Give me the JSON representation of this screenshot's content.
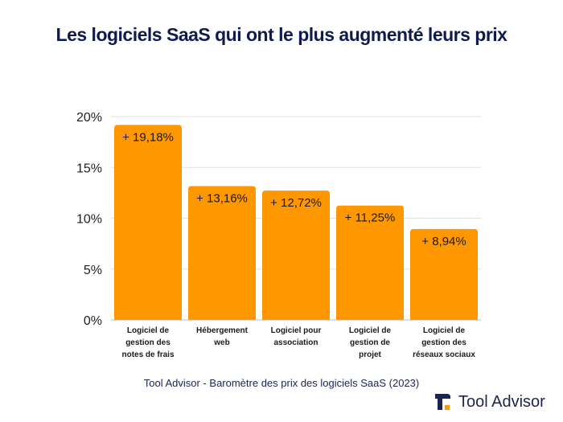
{
  "title": "Les logiciels SaaS qui ont le plus augmenté leurs prix",
  "source": "Tool Advisor - Baromètre des prix des logiciels SaaS (2023)",
  "brand": {
    "name": "Tool Advisor",
    "icon": "tool-advisor-logo-icon"
  },
  "colors": {
    "bar": "#ff9800",
    "title": "#0f1b4f",
    "grid": "#e0e0e0",
    "text": "#1c2450",
    "logo_accent": "#ff9800"
  },
  "chart_data": {
    "type": "bar",
    "categories": [
      [
        "Logiciel de",
        "gestion des",
        "notes de frais"
      ],
      [
        "Hébergement",
        "web"
      ],
      [
        "Logiciel pour",
        "association"
      ],
      [
        "Logiciel de",
        "gestion de",
        "projet"
      ],
      [
        "Logiciel de",
        "gestion des",
        "réseaux sociaux"
      ]
    ],
    "values": [
      19.18,
      13.16,
      12.72,
      11.25,
      8.94
    ],
    "data_labels": [
      "+ 19,18%",
      "+ 13,16%",
      "+ 12,72%",
      "+ 11,25%",
      "+ 8,94%"
    ],
    "ylim": [
      0,
      20
    ],
    "yticks": [
      0,
      5,
      10,
      15,
      20
    ],
    "ytick_labels": [
      "0%",
      "5%",
      "10%",
      "15%",
      "20%"
    ],
    "grid": true,
    "legend": "none"
  }
}
